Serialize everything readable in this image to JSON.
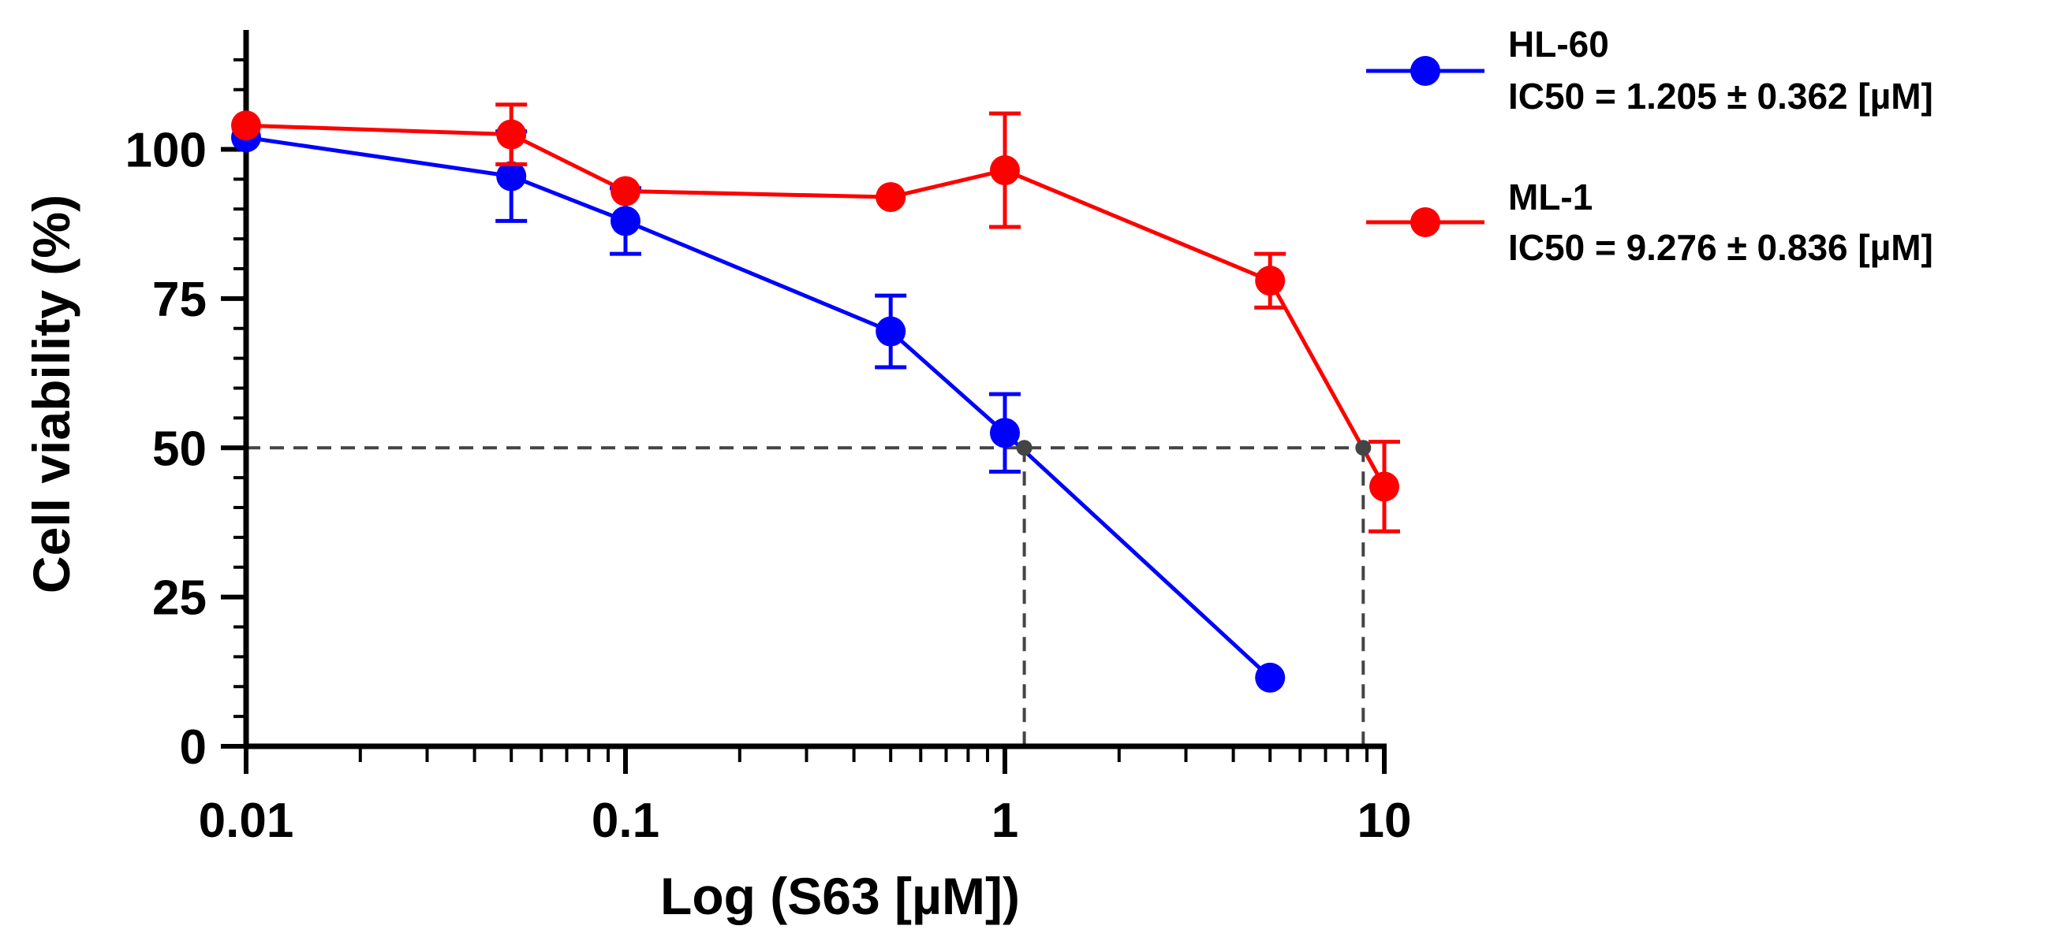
{
  "chart_data": {
    "type": "line",
    "xlabel": "Log (S63 [µM])",
    "ylabel": "Cell viability (%)",
    "x_scale": "log",
    "xlim": [
      0.01,
      10
    ],
    "ylim": [
      0,
      120
    ],
    "x_ticks": [
      {
        "value": 0.01,
        "label": "0.01"
      },
      {
        "value": 0.1,
        "label": "0.1"
      },
      {
        "value": 1,
        "label": "1"
      },
      {
        "value": 10,
        "label": "10"
      }
    ],
    "y_ticks": [
      {
        "value": 0,
        "label": "0"
      },
      {
        "value": 25,
        "label": "25"
      },
      {
        "value": 50,
        "label": "50"
      },
      {
        "value": 75,
        "label": "75"
      },
      {
        "value": 100,
        "label": "100"
      }
    ],
    "legend_position": "top-right",
    "series": [
      {
        "name": "HL-60",
        "ic50_label": "IC50 = 1.205 ± 0.362 [µM]",
        "color": "#0000ff",
        "x": [
          0.01,
          0.05,
          0.1,
          0.5,
          1,
          5
        ],
        "values": [
          102,
          95.5,
          88,
          69.5,
          52.5,
          11.5
        ],
        "error": [
          0,
          7.5,
          5.5,
          6,
          6.5,
          0
        ]
      },
      {
        "name": "ML-1",
        "ic50_label": "IC50 = 9.276 ± 0.836 [µM]",
        "color": "#ff0000",
        "x": [
          0.01,
          0.05,
          0.1,
          0.5,
          1,
          5,
          10
        ],
        "values": [
          104,
          102.5,
          93,
          92,
          96.5,
          78,
          43.5
        ],
        "error": [
          0,
          5,
          0,
          0,
          9.5,
          4.5,
          7.5
        ]
      }
    ],
    "reference_lines": {
      "y": 50,
      "ic50_points": [
        1.125,
        8.8
      ],
      "color": "#444444",
      "style": "dashed"
    }
  }
}
